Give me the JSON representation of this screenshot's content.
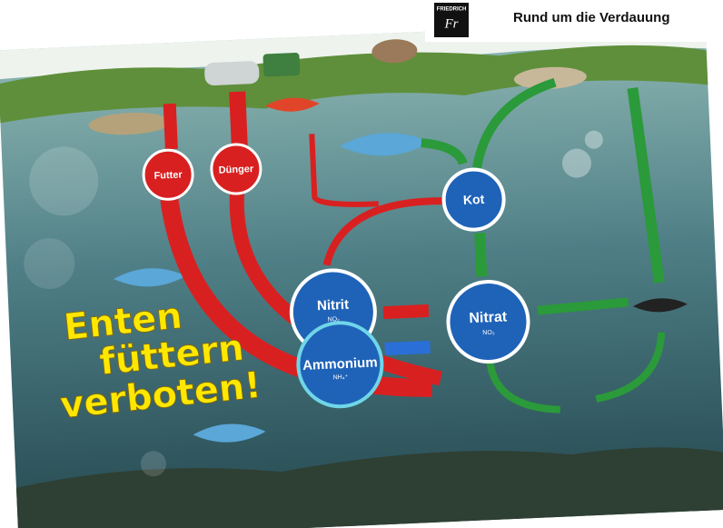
{
  "header": {
    "logo": "FRIEDRICH",
    "logo_mark": "Fr",
    "title": "Rund um die Verdauung"
  },
  "nodes": [
    {
      "label": "Futter"
    },
    {
      "label": "Dünger"
    },
    {
      "label": "Kot"
    },
    {
      "label": "Nitrit",
      "formula": "NO₂"
    },
    {
      "label": "Ammonium",
      "formula": "NH₄⁺"
    },
    {
      "label": "Nitrat",
      "formula": "NO₃"
    }
  ],
  "slogan": [
    "Enten",
    "füttern",
    "verboten!"
  ]
}
